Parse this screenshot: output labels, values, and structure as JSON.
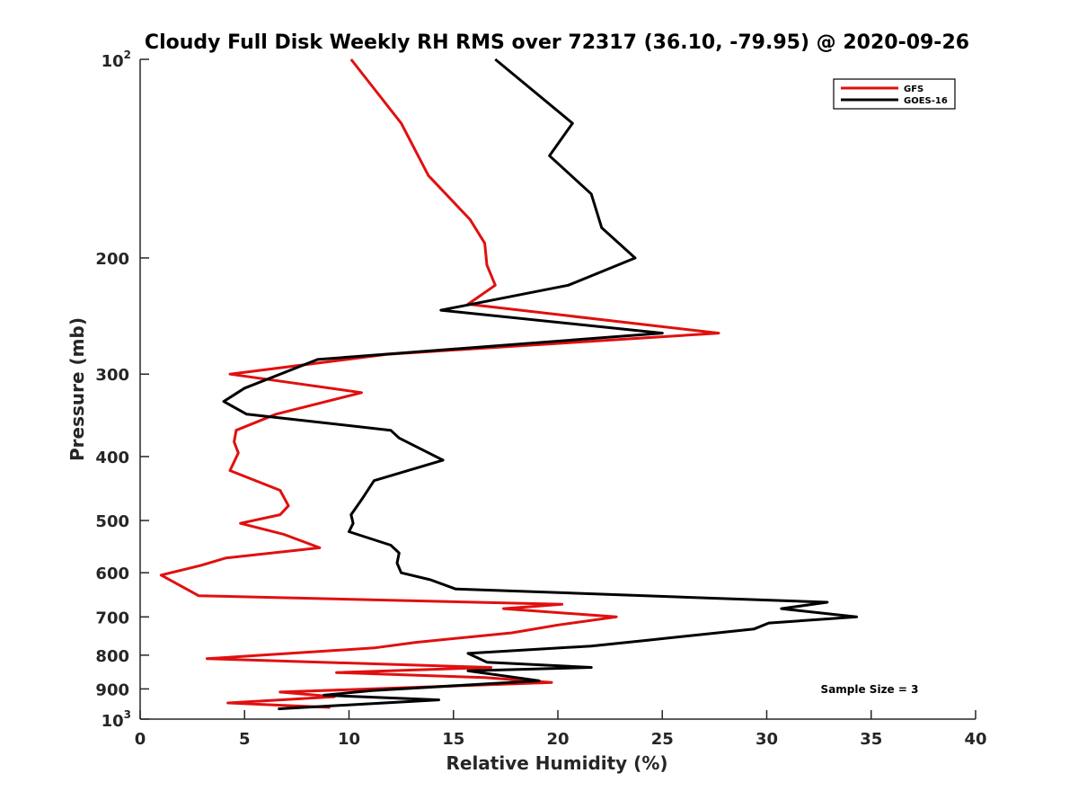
{
  "chart_data": {
    "type": "line",
    "title": "Cloudy Full Disk Weekly RH RMS over 72317 (36.10, -79.95) @ 2020-09-26",
    "xlabel": "Relative Humidity (%)",
    "ylabel": "Pressure (mb)",
    "xlim": [
      0,
      40
    ],
    "ylim": [
      100,
      1000
    ],
    "yscale": "log",
    "y_reversed": true,
    "grid": false,
    "legend_position": "top-right",
    "x_ticks": [
      "0",
      "5",
      "10",
      "15",
      "20",
      "25",
      "30",
      "35",
      "40"
    ],
    "y_ticks": [
      {
        "value": 100,
        "base": "10",
        "exp": "2"
      },
      {
        "value": 200,
        "label": "200"
      },
      {
        "value": 300,
        "label": "300"
      },
      {
        "value": 400,
        "label": "400"
      },
      {
        "value": 500,
        "label": "500"
      },
      {
        "value": 600,
        "label": "600"
      },
      {
        "value": 700,
        "label": "700"
      },
      {
        "value": 800,
        "label": "800"
      },
      {
        "value": 900,
        "label": "900"
      },
      {
        "value": 1000,
        "base": "10",
        "exp": "3"
      }
    ],
    "annotation": "Sample Size = 3",
    "series": [
      {
        "name": "GFS",
        "color": "#e0100f",
        "points": [
          [
            10.1,
            100
          ],
          [
            12.5,
            125
          ],
          [
            13.8,
            150
          ],
          [
            15.8,
            175
          ],
          [
            16.5,
            190
          ],
          [
            16.6,
            205
          ],
          [
            17.0,
            220
          ],
          [
            15.7,
            235
          ],
          [
            27.7,
            260
          ],
          [
            11.8,
            280
          ],
          [
            4.3,
            300
          ],
          [
            10.6,
            320
          ],
          [
            6.5,
            345
          ],
          [
            4.6,
            365
          ],
          [
            4.5,
            380
          ],
          [
            4.7,
            395
          ],
          [
            4.3,
            420
          ],
          [
            6.7,
            450
          ],
          [
            7.1,
            475
          ],
          [
            6.7,
            490
          ],
          [
            4.8,
            505
          ],
          [
            6.9,
            525
          ],
          [
            8.6,
            550
          ],
          [
            4.1,
            570
          ],
          [
            2.9,
            585
          ],
          [
            1.0,
            605
          ],
          [
            2.8,
            650
          ],
          [
            20.2,
            670
          ],
          [
            17.4,
            680
          ],
          [
            22.8,
            700
          ],
          [
            20.0,
            720
          ],
          [
            17.8,
            740
          ],
          [
            13.2,
            765
          ],
          [
            11.2,
            780
          ],
          [
            3.2,
            810
          ],
          [
            16.8,
            835
          ],
          [
            9.4,
            850
          ],
          [
            16.5,
            865
          ],
          [
            19.7,
            880
          ],
          [
            6.7,
            910
          ],
          [
            9.3,
            925
          ],
          [
            4.2,
            945
          ],
          [
            9.1,
            960
          ]
        ]
      },
      {
        "name": "GOES-16",
        "color": "#000000",
        "points": [
          [
            17.0,
            100
          ],
          [
            20.7,
            125
          ],
          [
            19.6,
            140
          ],
          [
            21.6,
            160
          ],
          [
            22.1,
            180
          ],
          [
            23.7,
            200
          ],
          [
            20.5,
            220
          ],
          [
            14.4,
            240
          ],
          [
            25.0,
            260
          ],
          [
            8.5,
            285
          ],
          [
            5.0,
            315
          ],
          [
            4.0,
            330
          ],
          [
            5.1,
            345
          ],
          [
            12.0,
            365
          ],
          [
            12.4,
            375
          ],
          [
            14.5,
            405
          ],
          [
            11.2,
            435
          ],
          [
            10.6,
            465
          ],
          [
            10.1,
            490
          ],
          [
            10.2,
            505
          ],
          [
            10.0,
            520
          ],
          [
            12.0,
            545
          ],
          [
            12.4,
            560
          ],
          [
            12.3,
            580
          ],
          [
            12.5,
            600
          ],
          [
            13.9,
            615
          ],
          [
            15.1,
            635
          ],
          [
            32.9,
            665
          ],
          [
            30.7,
            680
          ],
          [
            34.3,
            700
          ],
          [
            30.1,
            715
          ],
          [
            29.4,
            730
          ],
          [
            24.2,
            760
          ],
          [
            21.6,
            775
          ],
          [
            15.7,
            795
          ],
          [
            16.6,
            820
          ],
          [
            21.6,
            835
          ],
          [
            15.7,
            845
          ],
          [
            19.1,
            875
          ],
          [
            11.1,
            905
          ],
          [
            8.8,
            920
          ],
          [
            14.3,
            935
          ],
          [
            6.6,
            965
          ]
        ]
      }
    ]
  }
}
